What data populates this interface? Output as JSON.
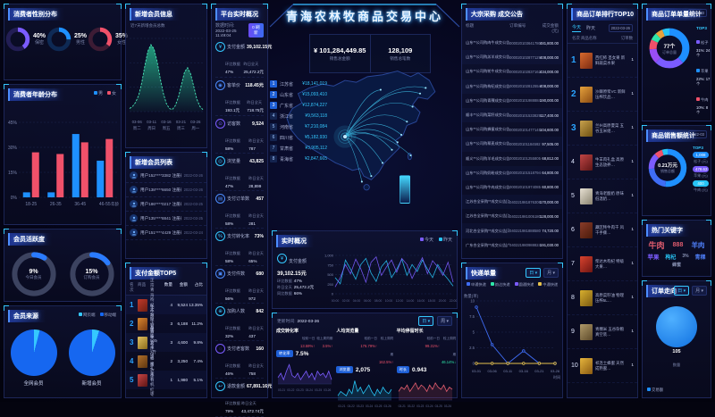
{
  "header": {
    "title": "青海农林牧商品交易中心"
  },
  "gender": {
    "title": "消费者性别分布",
    "items": [
      {
        "pct": "40%",
        "label": "保密",
        "value": 40,
        "color": "#7b5cff"
      },
      {
        "pct": "25%",
        "label": "男性",
        "value": 25,
        "color": "#1e90ff"
      },
      {
        "pct": "35%",
        "label": "女性",
        "value": 35,
        "color": "#f0516a"
      }
    ]
  },
  "age": {
    "title": "消费者年龄分布",
    "xlabel": "年龄",
    "ymax": 45,
    "yticks": [
      "45%",
      "30%",
      "15%",
      "0%"
    ],
    "categories": [
      "18-25",
      "26-35",
      "36-45",
      "46-55"
    ],
    "series": [
      {
        "name": "男",
        "color": "#1e90ff",
        "values": [
          3,
          3,
          38,
          22
        ]
      },
      {
        "name": "女",
        "color": "#f0516a",
        "values": [
          27,
          26,
          33,
          35
        ]
      }
    ]
  },
  "activity": {
    "title": "会员活跃度",
    "gauges": [
      {
        "pct": 9,
        "text": "9%",
        "label": "今日会员"
      },
      {
        "pct": 15,
        "text": "15%",
        "label": "订购会员"
      }
    ]
  },
  "source": {
    "title": "会员来源",
    "legend": [
      {
        "label": "网页端",
        "color": "#35c8ff"
      },
      {
        "label": "移动端",
        "color": "#1667f0"
      }
    ],
    "pies": [
      {
        "label": "全网会员",
        "web": 4
      },
      {
        "label": "新增会员",
        "web": 5
      }
    ]
  },
  "newmember": {
    "title": "新增会员信息",
    "subtitle": "近7天新增会员总数",
    "ymax": 70,
    "points": [
      3,
      5,
      9,
      16,
      28,
      44,
      58,
      64,
      60,
      48,
      32,
      18,
      8,
      3,
      2,
      6,
      14,
      26,
      38,
      42,
      36,
      24,
      12,
      5,
      2
    ],
    "xticks": [
      {
        "d": "03-06",
        "w": "周二"
      },
      {
        "d": "03-11",
        "w": "周日"
      },
      {
        "d": "03-16",
        "w": "周五"
      },
      {
        "d": "03-21",
        "w": "周三"
      },
      {
        "d": "03-26",
        "w": "周一"
      }
    ]
  },
  "memberlist": {
    "title": "新增会员列表",
    "rows": [
      {
        "text": "用户152****3382 注册成为新会员",
        "date": "2022-03-26"
      },
      {
        "text": "用户138****6650 注册成为新会员",
        "date": "2022-03-26"
      },
      {
        "text": "用户186****0217 注册成为新会员",
        "date": "2022-03-25"
      },
      {
        "text": "用户135****8841 注册成为新会员",
        "date": "2022-03-25"
      },
      {
        "text": "用户151****4429 注册成为新会员",
        "date": "2022-03-24"
      }
    ]
  },
  "paytop": {
    "title": "支付金额TOP5",
    "headers": [
      "名次",
      "商品",
      "数量",
      "金额",
      "占比"
    ],
    "rows": [
      {
        "rank": "1",
        "name": "正宗青海枸杞 大颗粒特级",
        "qty": "4",
        "amt": "9,524",
        "share": "13.35%",
        "thumb": "linear-gradient(135deg,#c0392b,#6e1f12)"
      },
      {
        "rank": "2",
        "name": "牦牛肉干 五香味 500g",
        "qty": "3",
        "amt": "6,188",
        "share": "11.2%",
        "thumb": "linear-gradient(135deg,#d9882f,#7a3a12)"
      },
      {
        "rank": "3",
        "name": "高原藜麦米 2斤装",
        "qty": "3",
        "amt": "4,600",
        "share": "9.8%",
        "thumb": "linear-gradient(135deg,#e0c060,#8a6a1a)"
      },
      {
        "rank": "4",
        "name": "祁连山蜂蜜 礼盒装",
        "qty": "2",
        "amt": "3,250",
        "share": "7.4%",
        "thumb": "linear-gradient(135deg,#b0702a,#5d3510)"
      },
      {
        "rank": "5",
        "name": "柴达木有机红枣",
        "qty": "1",
        "amt": "1,980",
        "share": "5.1%",
        "thumb": "linear-gradient(135deg,#c84545,#5d1515)"
      }
    ]
  },
  "platform": {
    "title": "平台实时概况",
    "time_label": "数据时间:",
    "time": "2022-03-25 11:49:04",
    "refresh": "0 刷新",
    "sub1": "环比数据",
    "sub2": "昨日全天",
    "stats": [
      {
        "icon": "¥",
        "ic": "#35c8ff",
        "label": "支付金额",
        "value": "39,102.15元",
        "hb": "47%",
        "yd": "25,472.2元"
      },
      {
        "icon": "◉",
        "ic": "#4d8dff",
        "label": "客单价",
        "value": "118.45元",
        "hb": "193.1元",
        "yd": "718.75元"
      },
      {
        "icon": "⊙",
        "ic": "#7b5cff",
        "label": "访客数",
        "value": "9,524",
        "hb": "58%",
        "yd": "787"
      },
      {
        "icon": "◎",
        "ic": "#35c8ff",
        "label": "浏览量",
        "value": "43,825",
        "hb": "47%",
        "yd": "28,899"
      },
      {
        "icon": "▤",
        "ic": "#4d8dff",
        "label": "支付订单数",
        "value": "457",
        "hb": "58%",
        "yd": "281"
      },
      {
        "icon": "%",
        "ic": "#35c8ff",
        "label": "支付转化率",
        "value": "73%",
        "hb": "58%",
        "yd": "65%"
      },
      {
        "icon": "▣",
        "ic": "#4d8dff",
        "label": "支付件数",
        "value": "680",
        "hb": "56%",
        "yd": "972"
      },
      {
        "icon": "⊕",
        "ic": "#35c8ff",
        "label": "加购人数",
        "value": "842",
        "hb": "32%",
        "yd": "437"
      },
      {
        "icon": "◌",
        "ic": "#7b5cff",
        "label": "支付老客数",
        "value": "160",
        "hb": "46%",
        "yd": "758"
      },
      {
        "icon": "↩",
        "ic": "#35c8ff",
        "label": "退款金额",
        "value": "67,891.16元",
        "hb": "79%",
        "yd": "43,472.74元"
      }
    ]
  },
  "map": {
    "total_amount": "¥ 101,284,449.85",
    "total_amount_label": "销售总金额",
    "total_count": "128,109",
    "total_count_label": "销售总笔数",
    "rank": [
      {
        "n": "1",
        "name": "江苏省",
        "amt": "¥18,141,019"
      },
      {
        "n": "2",
        "name": "山东省",
        "amt": "¥15,093,410"
      },
      {
        "n": "3",
        "name": "广东省",
        "amt": "¥12,874,227"
      },
      {
        "n": "4",
        "name": "浙江省",
        "amt": "¥9,563,118"
      },
      {
        "n": "5",
        "name": "河南省",
        "amt": "¥7,210,084"
      },
      {
        "n": "6",
        "name": "四川省",
        "amt": "¥5,182,930"
      },
      {
        "n": "7",
        "name": "甘肃省",
        "amt": "¥3,905,112"
      },
      {
        "n": "8",
        "name": "青海省",
        "amt": "¥2,847,665"
      }
    ]
  },
  "realtime": {
    "title": "实时概况",
    "legend": [
      {
        "label": "今天",
        "color": "#7b5cff"
      },
      {
        "label": "昨天",
        "color": "#27c4f5"
      }
    ],
    "stat": {
      "icon": "¥",
      "label": "支付金额",
      "value": "39,102.15元",
      "rows": [
        [
          "环比数据",
          "47%"
        ],
        [
          "昨日全天",
          "25,472.2元"
        ],
        [
          "同比数据",
          "66%"
        ]
      ]
    },
    "ymax": 1000,
    "yticks": [
      "1,000",
      "750",
      "500",
      "250",
      "0"
    ],
    "xticks": [
      "00:00",
      "02:00",
      "04:00",
      "06:00",
      "08:00",
      "10:00",
      "12:00",
      "14:00",
      "16:00",
      "18:00",
      "20:00",
      "22:00"
    ],
    "today": [
      180,
      420,
      760,
      520,
      900,
      650,
      300,
      820,
      960,
      480,
      700,
      880,
      560,
      920,
      760,
      400,
      680,
      940,
      520,
      860,
      700,
      480,
      820,
      300
    ],
    "yesterday": [
      420,
      260,
      880,
      640,
      380,
      760,
      920,
      540,
      320,
      700,
      860,
      420,
      640,
      900,
      480,
      760,
      580,
      880,
      640,
      420,
      760,
      540,
      380,
      200
    ]
  },
  "trend": {
    "update_label": "更新时间:",
    "update": "2022-03-26",
    "btn_day": "日 ▾",
    "btn_week": "周 ▾",
    "delta1": "较前一日",
    "delta2": "较上周同期",
    "xticks": [
      "03-21",
      "03-22",
      "03-23",
      "03-24",
      "03-25",
      "03-26"
    ],
    "cards": [
      {
        "title": "成交转化率",
        "pill": "转化率",
        "value": "7.5%",
        "d1t": "13.59%",
        "d1a": "↑",
        "d1c": "#f0516a",
        "d2t": "3.5%",
        "d2a": "↑",
        "d2c": "#f0516a",
        "color": "#7b5cff",
        "spark": [
          3,
          5,
          2,
          6,
          9,
          4,
          3,
          5,
          2,
          4,
          6,
          3,
          5,
          2,
          6,
          4,
          5,
          3,
          6,
          2
        ]
      },
      {
        "title": "人均浏览量",
        "pill": "浏览量",
        "value": "2,075",
        "d1t": "176.79%",
        "d1a": "↑",
        "d1c": "#f0516a",
        "d2t": "162.5%",
        "d2a": "↑",
        "d2c": "#f0516a",
        "color": "#27c4f5",
        "spark": [
          2,
          4,
          3,
          2,
          5,
          3,
          9,
          4,
          6,
          3,
          5,
          7,
          4,
          2,
          5,
          3,
          6,
          4,
          3,
          5
        ]
      },
      {
        "title": "平均停留时长",
        "pill": "时长",
        "value": "0.943",
        "d1t": "99.31%",
        "d1a": "↑",
        "d1c": "#f0516a",
        "d2t": "46.14%",
        "d2a": "↓",
        "d2c": "#2ee6a8",
        "color": "#e05c6e",
        "spark": [
          4,
          6,
          5,
          7,
          4,
          6,
          8,
          5,
          7,
          6,
          4,
          7,
          5,
          8,
          6,
          5,
          7,
          4,
          6,
          5
        ]
      }
    ]
  },
  "deals": {
    "title": "大宗采购 成交公告",
    "headers": [
      "标题",
      "订单编号",
      "成交金额(元)"
    ],
    "rows": [
      {
        "t": "山东**公司购肉牛成交公告|山东**公…",
        "no": "000020103641780",
        "amt": "481,800.00"
      },
      {
        "t": "山东**公司购羔羊成交公告|山东**公…",
        "no": "000020102877129",
        "amt": "408,000.00"
      },
      {
        "t": "山东**公司购牦牛成交公告|山东**公…",
        "no": "000020102837162",
        "amt": "434,000.00"
      },
      {
        "t": "山东**公司购枸杞成交公告|山东**公…",
        "no": "000020102812554",
        "amt": "408,000.00"
      },
      {
        "t": "山东**公司购青稞成交公告|山东**公…",
        "no": "000020101988884",
        "amt": "190,000.00"
      },
      {
        "t": "顺丰**公司购菜籽成交公告|顺丰**公…",
        "no": "000020101533829",
        "amt": "117,400.00"
      },
      {
        "t": "山东**公司购蜂蜜成交公告|山东**公…",
        "no": "000020101477145",
        "amt": "104,600.00"
      },
      {
        "t": "山东**公司购藜麦成交公告|山东**公…",
        "no": "000020101184592",
        "amt": "97,505.00"
      },
      {
        "t": "顺义**公司购羊毛成交公告|顺义**公…",
        "no": "000020101255805",
        "amt": "68,812.00"
      },
      {
        "t": "山东**公司购奶粉成交公告|山东**公…",
        "no": "000020101518794",
        "amt": "64,800.00"
      },
      {
        "t": "山东**公司购牛肉成交公告|山东**公…",
        "no": "000020101974085",
        "amt": "60,800.00"
      },
      {
        "t": "江苏合全采购**成交公告|江苏合全采…",
        "no": "040221981876308",
        "amt": "170,000.00"
      },
      {
        "t": "江苏合全采购**成交公告|江苏合全采…",
        "no": "040221981005180",
        "amt": "128,000.00"
      },
      {
        "t": "河北合全采购**成交公告|河北合全采…",
        "no": "040221981888580",
        "amt": "74,720.00"
      },
      {
        "t": "广东合全采购**成交公告|广东合全采…",
        "no": "040221980988824",
        "amt": "191,030.00"
      }
    ]
  },
  "express": {
    "title": "快递单量",
    "btn_day": "日 ▾",
    "btn_month": "月 ▾",
    "ylabel": "数量(单)",
    "xlabel": "时间",
    "yticks": [
      "10",
      "7.5",
      "5",
      "2.5",
      "0"
    ],
    "ymax": 10,
    "xticks": [
      "03-01",
      "03-06",
      "03-11",
      "03-16",
      "03-21",
      "03-26"
    ],
    "legend": [
      {
        "label": "申通快递",
        "color": "#3f6df5"
      },
      {
        "label": "韵达快递",
        "color": "#2ee6a8"
      },
      {
        "label": "圆通快递",
        "color": "#7b5cff"
      },
      {
        "label": "中通快递",
        "color": "#e6c24d"
      }
    ],
    "series": [
      {
        "color": "#3f6df5",
        "values": [
          9,
          3,
          0,
          2,
          0,
          0
        ]
      },
      {
        "color": "#e6c24d",
        "values": [
          0,
          0,
          0,
          0,
          0,
          0
        ]
      }
    ]
  },
  "ordertop": {
    "title": "商品订单排行TOP10",
    "tab_today": "今天",
    "tab_yesterday": "昨天",
    "date": "2022-03-26",
    "headers": [
      "名次",
      "商品名称",
      "订单数"
    ],
    "rows": [
      {
        "rank": "1",
        "name": "西红柿 圣女果 新鲜蔬菜水果",
        "count": "1",
        "thumb": "linear-gradient(135deg,#d96a2e,#7a2a12)"
      },
      {
        "rank": "2",
        "name": "沙棘原浆VC 新鲜压榨饮品…",
        "count": "1",
        "thumb": "linear-gradient(135deg,#e6a23c,#8a4a12)"
      },
      {
        "rank": "3",
        "name": "兰州高原夏菜 五谷玉米组…",
        "count": "1",
        "thumb": "linear-gradient(135deg,#c9a24d,#6e5012)"
      },
      {
        "rank": "4",
        "name": "牛羊肉礼盒 高原生态放养…",
        "count": "1",
        "thumb": "linear-gradient(135deg,#c04545,#5d1515)"
      },
      {
        "rank": "5",
        "name": "青海老酸奶 原味低温奶…",
        "count": "1",
        "thumb": "linear-gradient(135deg,#e8e2d4,#8a8370)"
      },
      {
        "rank": "6",
        "name": "藏区牦牛肉干 风干手撕…",
        "count": "1",
        "thumb": "linear-gradient(135deg,#8a3c2a,#4a1a0a)"
      },
      {
        "rank": "7",
        "name": "柴达木枸杞 特级大果…",
        "count": "1",
        "thumb": "linear-gradient(135deg,#d9432e,#6e1512)"
      },
      {
        "rank": "8",
        "name": "高原菜籽油 物理压榨5L…",
        "count": "1",
        "thumb": "linear-gradient(135deg,#d9b02e,#7a5a12)"
      },
      {
        "rank": "9",
        "name": "青稞米 五谷杂粮真空装…",
        "count": "1",
        "thumb": "linear-gradient(135deg,#b09a6a,#5d4a2a)"
      },
      {
        "rank": "10",
        "name": "祁连土蜂蜜 天然成熟蜜…",
        "count": "1",
        "thumb": "linear-gradient(135deg,#e6b53c,#8a5a12)"
      }
    ]
  },
  "orderstat": {
    "title": "商品订单单量统计",
    "date": "2022-03",
    "legend_title": "TOP3",
    "center_value": "77个",
    "center_label": "订单总量",
    "segments": [
      {
        "v": 38,
        "color": "#1e90ff"
      },
      {
        "v": 24,
        "color": "#7b5cff"
      },
      {
        "v": 12,
        "color": "#9a4df5"
      },
      {
        "v": 8,
        "color": "#f0516a"
      },
      {
        "v": 6,
        "color": "#2ee6a8"
      },
      {
        "v": 6,
        "color": "#e6a23c"
      },
      {
        "v": 6,
        "color": "#27c4f5"
      }
    ],
    "top3": [
      {
        "name": "松子",
        "pct": "31%:",
        "cnt": "24个",
        "color": "#7b5cff"
      },
      {
        "name": "苹果",
        "pct": "22%:",
        "cnt": "17个",
        "color": "#1e90ff"
      },
      {
        "name": "牛肉",
        "pct": "10%:",
        "cnt": "8个",
        "color": "#f0516a"
      }
    ]
  },
  "salestat": {
    "title": "商品销售额统计",
    "date": "2022-03",
    "legend_title": "TOP3",
    "center_value": "0.21万元",
    "center_label": "销售总额",
    "segments": [
      {
        "v": 52,
        "color": "#1e90ff"
      },
      {
        "v": 22,
        "color": "#3f6df5"
      },
      {
        "v": 14,
        "color": "#7b5cff"
      },
      {
        "v": 7,
        "color": "#f0516a"
      },
      {
        "v": 5,
        "color": "#27c4f5"
      }
    ],
    "top3": [
      {
        "value": "1,008",
        "label": "松子 (元)",
        "color": "#1e90ff"
      },
      {
        "value": "478.63",
        "label": "苹果 (元)",
        "color": "#7b5cff"
      },
      {
        "value": "400",
        "label": "牛肉 (元)",
        "color": "#27c4f5"
      }
    ]
  },
  "keywords": {
    "title": "热门关键字",
    "words": [
      {
        "t": "牛肉",
        "c": "#e05c6e",
        "s": "9px"
      },
      {
        "t": "888",
        "c": "#e05c6e",
        "s": "7px"
      },
      {
        "t": "羊肉",
        "c": "#4d7df5",
        "s": "7.5px"
      },
      {
        "t": "苹果",
        "c": "#7b5cff",
        "s": "6.5px"
      },
      {
        "t": "枸杞",
        "c": "#27c4f5",
        "s": "6px"
      },
      {
        "t": "3%",
        "c": "#8a93b5",
        "s": "5px"
      },
      {
        "t": "青稞",
        "c": "#4d7df5",
        "s": "6px"
      },
      {
        "t": "蜂蜜",
        "c": "#8a93b5",
        "s": "5px"
      }
    ]
  },
  "direction": {
    "title": "订单走向",
    "btn_day": "日 ▾",
    "btn_month": "月 ▾",
    "pie_value": "105",
    "pie_label": "数量",
    "legend_label": "交易额",
    "legend_color": "#1e90ff"
  }
}
